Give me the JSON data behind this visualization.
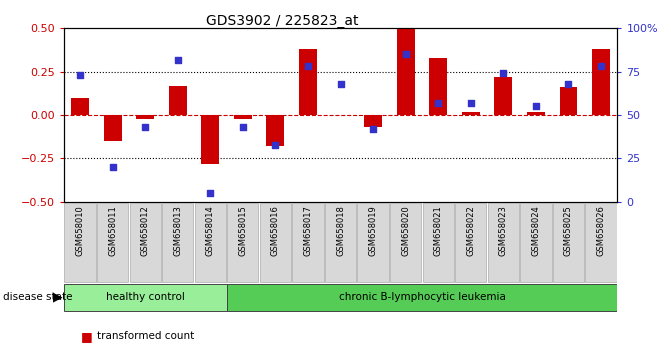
{
  "title": "GDS3902 / 225823_at",
  "samples": [
    "GSM658010",
    "GSM658011",
    "GSM658012",
    "GSM658013",
    "GSM658014",
    "GSM658015",
    "GSM658016",
    "GSM658017",
    "GSM658018",
    "GSM658019",
    "GSM658020",
    "GSM658021",
    "GSM658022",
    "GSM658023",
    "GSM658024",
    "GSM658025",
    "GSM658026"
  ],
  "red_values": [
    0.1,
    -0.15,
    -0.02,
    0.17,
    -0.28,
    -0.02,
    -0.18,
    0.38,
    0.0,
    -0.07,
    0.5,
    0.33,
    0.02,
    0.22,
    0.02,
    0.16,
    0.38
  ],
  "blue_pct": [
    73,
    20,
    43,
    82,
    5,
    43,
    33,
    78,
    68,
    42,
    85,
    57,
    57,
    74,
    55,
    68,
    78
  ],
  "healthy_count": 5,
  "bar_color": "#cc0000",
  "dot_color": "#3333cc",
  "healthy_color": "#99ee99",
  "leukemia_color": "#55cc55",
  "background_color": "#ffffff",
  "ylim": [
    -0.5,
    0.5
  ],
  "y2lim": [
    0,
    100
  ],
  "yticks_left": [
    -0.5,
    -0.25,
    0.0,
    0.25,
    0.5
  ],
  "yticks_right": [
    0,
    25,
    50,
    75,
    100
  ],
  "hgrid_lines": [
    -0.25,
    0.0,
    0.25
  ],
  "zero_line_color": "#cc0000",
  "label_bg": "#d8d8d8",
  "title_fontsize": 10,
  "axis_fontsize": 8,
  "label_fontsize": 6
}
